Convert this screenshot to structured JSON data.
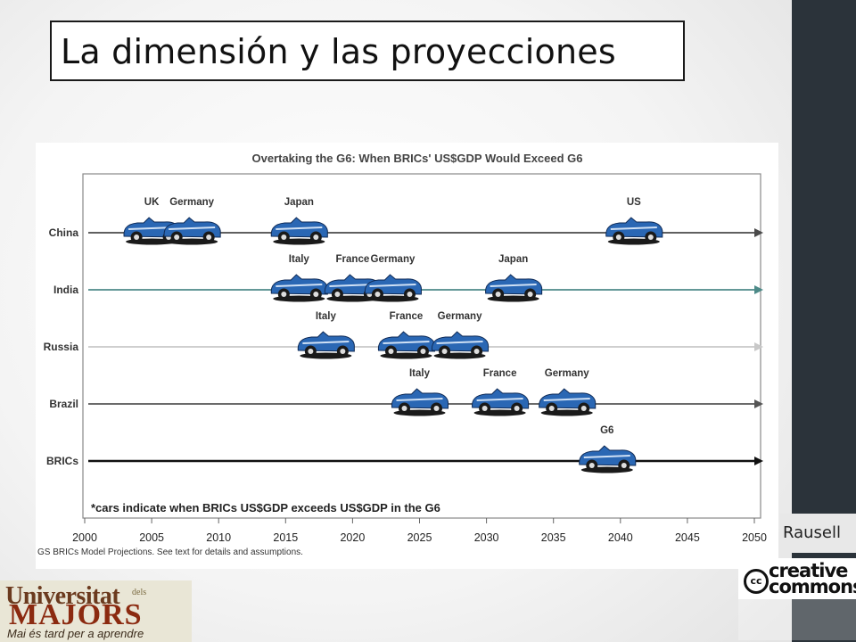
{
  "slide": {
    "title": "La dimensión y las proyecciones",
    "credit": "Rausell",
    "cc_logo": {
      "mark": "cc",
      "line1": "creative",
      "line2": "commons"
    },
    "university_logo": {
      "line1": "Universitat",
      "small": "dels",
      "line2": "MAJORS",
      "tagline": "Mai és tard per a aprendre"
    }
  },
  "chart_data": {
    "type": "timeline",
    "title": "Overtaking the G6: When BRICs' US$GDP Would Exceed G6",
    "note": "*cars indicate when BRICs US$GDP exceeds US$GDP in the G6",
    "source": "GS BRICs Model Projections. See text for details and assumptions.",
    "x_ticks": [
      2000,
      2005,
      2010,
      2015,
      2020,
      2025,
      2030,
      2035,
      2040,
      2045,
      2050
    ],
    "xlim": [
      2000,
      2050
    ],
    "colors": {
      "China": "#4a4a4a",
      "India": "#4d8a88",
      "Russia": "#c8c8c8",
      "Brazil": "#555555",
      "BRICs": "#111111",
      "car": "#2a67b4"
    },
    "rows": [
      {
        "name": "China",
        "events": [
          {
            "label": "UK",
            "year": 2005
          },
          {
            "label": "Germany",
            "year": 2008
          },
          {
            "label": "Japan",
            "year": 2016
          },
          {
            "label": "US",
            "year": 2041
          }
        ]
      },
      {
        "name": "India",
        "events": [
          {
            "label": "Italy",
            "year": 2016
          },
          {
            "label": "France",
            "year": 2020
          },
          {
            "label": "Germany",
            "year": 2023
          },
          {
            "label": "Japan",
            "year": 2032
          }
        ]
      },
      {
        "name": "Russia",
        "events": [
          {
            "label": "Italy",
            "year": 2018
          },
          {
            "label": "France",
            "year": 2024
          },
          {
            "label": "Germany",
            "year": 2028
          }
        ]
      },
      {
        "name": "Brazil",
        "events": [
          {
            "label": "Italy",
            "year": 2025
          },
          {
            "label": "France",
            "year": 2031
          },
          {
            "label": "Germany",
            "year": 2036
          }
        ]
      },
      {
        "name": "BRICs",
        "events": [
          {
            "label": "G6",
            "year": 2039
          }
        ]
      }
    ]
  }
}
